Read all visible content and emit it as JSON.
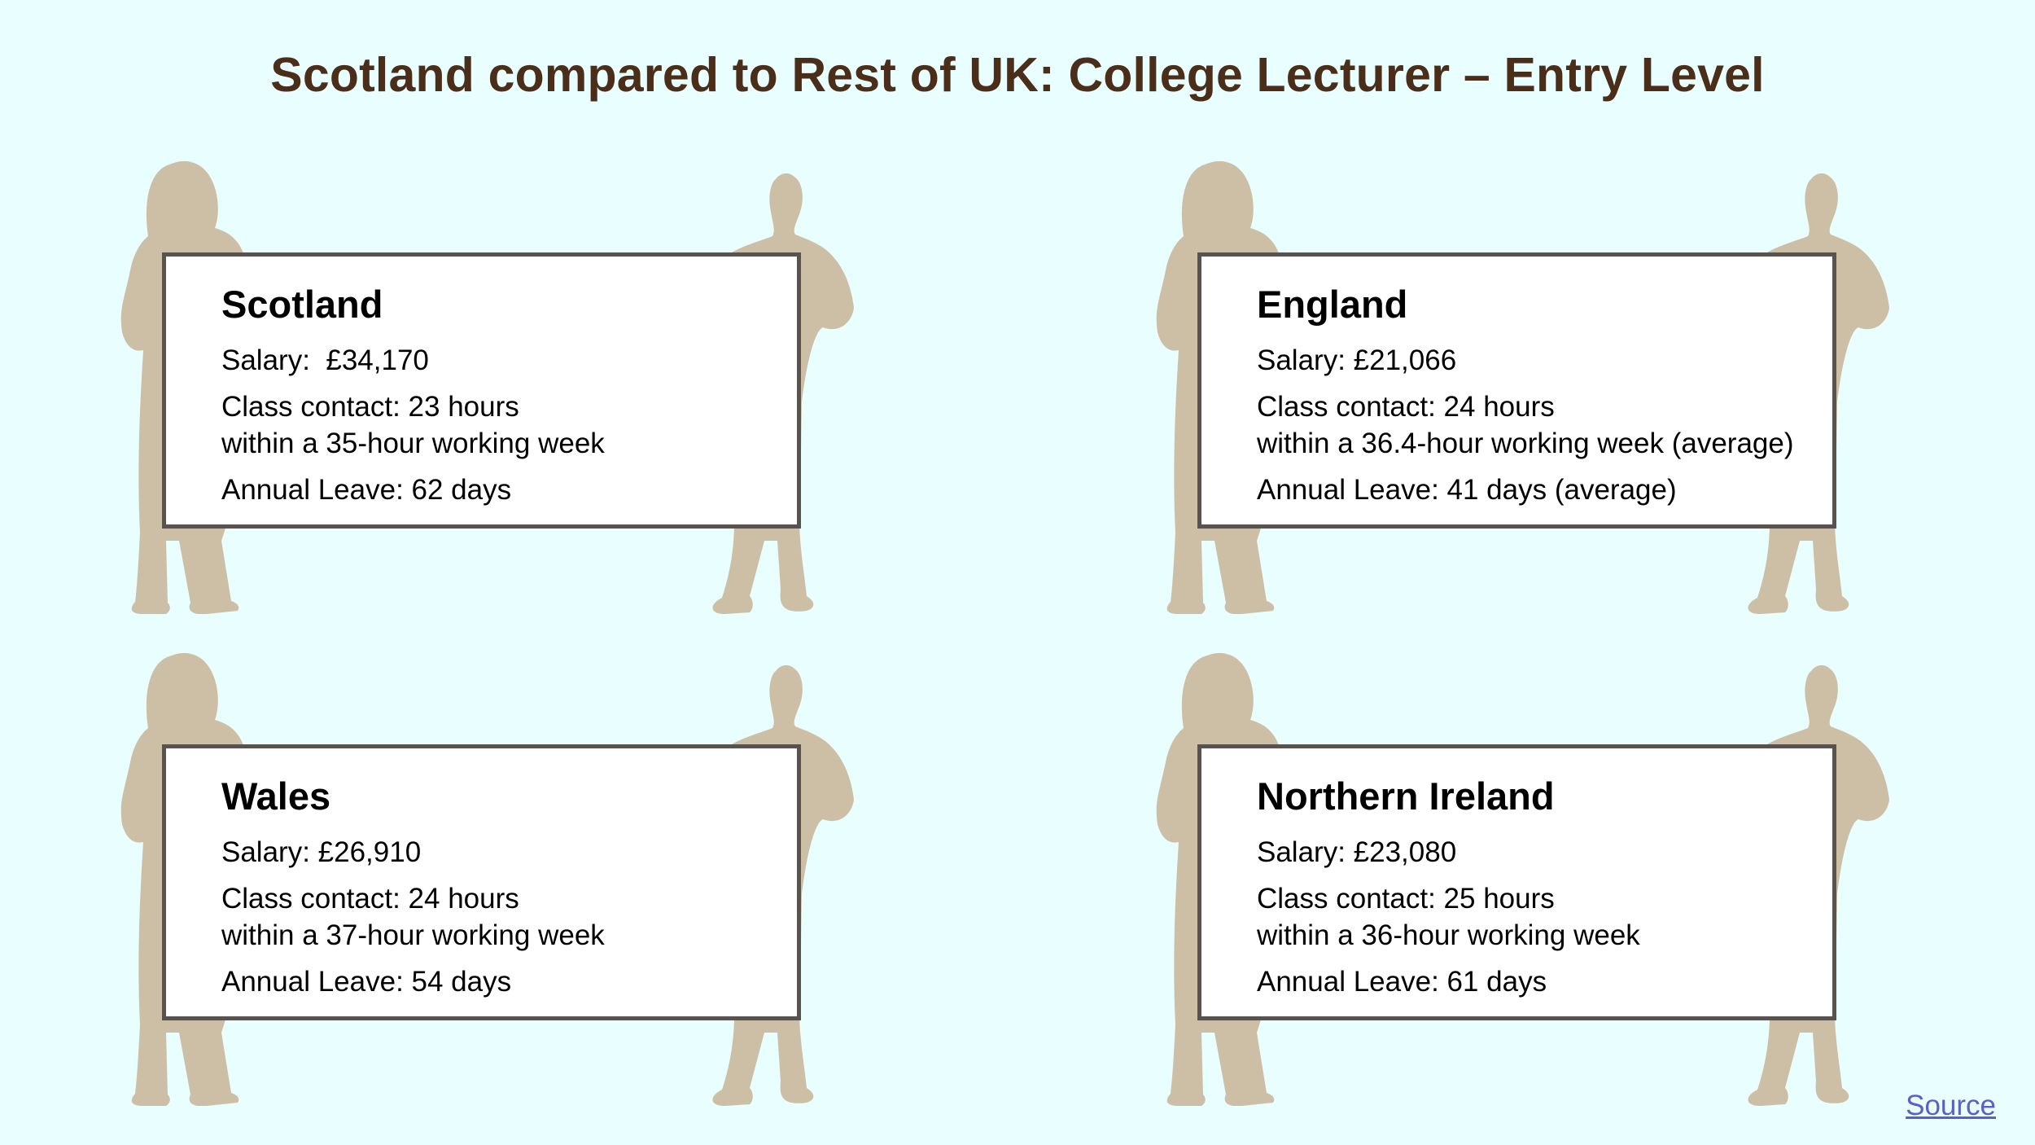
{
  "title": "Scotland compared to Rest of UK: College Lecturer – Entry Level",
  "colors": {
    "background": "#e8feff",
    "title": "#4a2e19",
    "silhouette": "#cdbfa5",
    "card_border": "#58534f",
    "link": "#5b5fc7"
  },
  "cards": [
    {
      "name": "Scotland",
      "salary": "Salary:  £34,170",
      "contact": "Class contact: 23 hours",
      "week": "within a 35-hour working week",
      "leave": "Annual Leave: 62 days"
    },
    {
      "name": "England",
      "salary": "Salary: £21,066",
      "contact": "Class contact: 24 hours",
      "week": "within a 36.4-hour working week (average)",
      "leave": "Annual Leave: 41 days (average)"
    },
    {
      "name": "Wales",
      "salary": "Salary: £26,910",
      "contact": "Class contact: 24 hours",
      "week": "within a 37-hour working week",
      "leave": "Annual Leave: 54 days"
    },
    {
      "name": "Northern Ireland",
      "salary": "Salary: £23,080",
      "contact": "Class contact: 25 hours",
      "week": "within a 36-hour working week",
      "leave": "Annual Leave: 61 days"
    }
  ],
  "source_link": "Source"
}
